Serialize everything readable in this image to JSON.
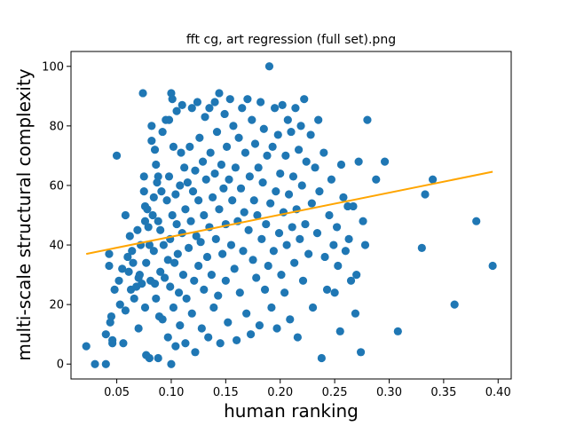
{
  "chart_data": {
    "type": "scatter",
    "title": "fft cg, art regression (full set).png",
    "xlabel": "human ranking",
    "ylabel": "multi-scale structural complexity",
    "xlim": [
      0.008,
      0.412
    ],
    "ylim": [
      -5,
      105
    ],
    "xticks": [
      0.05,
      0.1,
      0.15,
      0.2,
      0.25,
      0.3,
      0.35,
      0.4
    ],
    "xtick_labels": [
      "0.05",
      "0.10",
      "0.15",
      "0.20",
      "0.25",
      "0.30",
      "0.35",
      "0.40"
    ],
    "yticks": [
      0,
      20,
      40,
      60,
      80,
      100
    ],
    "ytick_labels": [
      "0",
      "20",
      "40",
      "60",
      "80",
      "100"
    ],
    "grid": false,
    "colors": {
      "points": "#1f77b4",
      "regression": "#ffa500"
    },
    "regression_line": {
      "x": [
        0.022,
        0.395
      ],
      "y": [
        37,
        64.6
      ]
    },
    "points": [
      [
        0.022,
        6
      ],
      [
        0.03,
        0
      ],
      [
        0.04,
        0
      ],
      [
        0.04,
        10
      ],
      [
        0.043,
        37
      ],
      [
        0.043,
        33
      ],
      [
        0.044,
        14
      ],
      [
        0.045,
        16
      ],
      [
        0.046,
        7
      ],
      [
        0.046,
        8
      ],
      [
        0.048,
        25
      ],
      [
        0.05,
        70
      ],
      [
        0.052,
        28
      ],
      [
        0.053,
        20
      ],
      [
        0.055,
        32
      ],
      [
        0.056,
        7
      ],
      [
        0.058,
        50
      ],
      [
        0.058,
        18
      ],
      [
        0.06,
        36
      ],
      [
        0.061,
        31
      ],
      [
        0.062,
        43
      ],
      [
        0.063,
        25
      ],
      [
        0.064,
        38
      ],
      [
        0.065,
        34
      ],
      [
        0.066,
        22
      ],
      [
        0.068,
        26
      ],
      [
        0.069,
        45
      ],
      [
        0.07,
        29
      ],
      [
        0.07,
        12
      ],
      [
        0.071,
        30
      ],
      [
        0.072,
        40
      ],
      [
        0.073,
        27
      ],
      [
        0.074,
        91
      ],
      [
        0.075,
        58
      ],
      [
        0.075,
        63
      ],
      [
        0.076,
        48
      ],
      [
        0.076,
        53
      ],
      [
        0.076,
        19
      ],
      [
        0.077,
        3
      ],
      [
        0.077,
        34
      ],
      [
        0.078,
        52
      ],
      [
        0.079,
        46
      ],
      [
        0.08,
        2
      ],
      [
        0.08,
        40
      ],
      [
        0.081,
        28
      ],
      [
        0.082,
        80
      ],
      [
        0.082,
        75
      ],
      [
        0.083,
        50
      ],
      [
        0.084,
        56
      ],
      [
        0.084,
        38
      ],
      [
        0.085,
        72
      ],
      [
        0.085,
        27
      ],
      [
        0.086,
        67
      ],
      [
        0.086,
        22
      ],
      [
        0.087,
        61
      ],
      [
        0.088,
        63
      ],
      [
        0.088,
        48
      ],
      [
        0.088,
        2
      ],
      [
        0.089,
        16
      ],
      [
        0.09,
        45
      ],
      [
        0.09,
        31
      ],
      [
        0.091,
        58
      ],
      [
        0.092,
        78
      ],
      [
        0.092,
        15
      ],
      [
        0.093,
        40
      ],
      [
        0.094,
        29
      ],
      [
        0.095,
        82
      ],
      [
        0.096,
        55
      ],
      [
        0.097,
        9
      ],
      [
        0.097,
        35
      ],
      [
        0.098,
        82
      ],
      [
        0.098,
        63
      ],
      [
        0.099,
        42
      ],
      [
        0.099,
        26
      ],
      [
        0.1,
        91
      ],
      [
        0.1,
        0
      ],
      [
        0.101,
        89
      ],
      [
        0.101,
        50
      ],
      [
        0.102,
        73
      ],
      [
        0.102,
        19
      ],
      [
        0.103,
        34
      ],
      [
        0.104,
        6
      ],
      [
        0.104,
        57
      ],
      [
        0.105,
        85
      ],
      [
        0.105,
        47
      ],
      [
        0.106,
        37
      ],
      [
        0.107,
        24
      ],
      [
        0.108,
        60
      ],
      [
        0.108,
        13
      ],
      [
        0.109,
        71
      ],
      [
        0.11,
        44
      ],
      [
        0.11,
        87
      ],
      [
        0.111,
        30
      ],
      [
        0.112,
        66
      ],
      [
        0.113,
        7
      ],
      [
        0.113,
        52
      ],
      [
        0.114,
        22
      ],
      [
        0.115,
        61
      ],
      [
        0.116,
        39
      ],
      [
        0.117,
        73
      ],
      [
        0.118,
        48
      ],
      [
        0.119,
        86
      ],
      [
        0.119,
        17
      ],
      [
        0.12,
        58
      ],
      [
        0.121,
        28
      ],
      [
        0.122,
        65
      ],
      [
        0.122,
        4
      ],
      [
        0.123,
        43
      ],
      [
        0.124,
        88
      ],
      [
        0.125,
        55
      ],
      [
        0.125,
        33
      ],
      [
        0.126,
        76
      ],
      [
        0.127,
        41
      ],
      [
        0.128,
        12
      ],
      [
        0.129,
        68
      ],
      [
        0.13,
        50
      ],
      [
        0.13,
        25
      ],
      [
        0.131,
        83
      ],
      [
        0.132,
        62
      ],
      [
        0.133,
        36
      ],
      [
        0.134,
        9
      ],
      [
        0.135,
        86
      ],
      [
        0.135,
        46
      ],
      [
        0.136,
        71
      ],
      [
        0.137,
        30
      ],
      [
        0.138,
        56
      ],
      [
        0.139,
        19
      ],
      [
        0.14,
        88
      ],
      [
        0.14,
        64
      ],
      [
        0.141,
        42
      ],
      [
        0.142,
        78
      ],
      [
        0.143,
        23
      ],
      [
        0.144,
        91
      ],
      [
        0.144,
        52
      ],
      [
        0.145,
        7
      ],
      [
        0.146,
        67
      ],
      [
        0.147,
        37
      ],
      [
        0.148,
        59
      ],
      [
        0.149,
        84
      ],
      [
        0.15,
        28
      ],
      [
        0.15,
        47
      ],
      [
        0.151,
        73
      ],
      [
        0.152,
        14
      ],
      [
        0.153,
        62
      ],
      [
        0.154,
        89
      ],
      [
        0.155,
        40
      ],
      [
        0.156,
        55
      ],
      [
        0.157,
        80
      ],
      [
        0.158,
        32
      ],
      [
        0.159,
        66
      ],
      [
        0.16,
        8
      ],
      [
        0.161,
        48
      ],
      [
        0.162,
        76
      ],
      [
        0.163,
        24
      ],
      [
        0.164,
        59
      ],
      [
        0.165,
        86
      ],
      [
        0.166,
        38
      ],
      [
        0.167,
        51
      ],
      [
        0.168,
        71
      ],
      [
        0.169,
        17
      ],
      [
        0.17,
        89
      ],
      [
        0.171,
        45
      ],
      [
        0.172,
        63
      ],
      [
        0.173,
        10
      ],
      [
        0.174,
        82
      ],
      [
        0.175,
        35
      ],
      [
        0.176,
        55
      ],
      [
        0.177,
        74
      ],
      [
        0.178,
        29
      ],
      [
        0.179,
        50
      ],
      [
        0.18,
        66
      ],
      [
        0.181,
        13
      ],
      [
        0.182,
        88
      ],
      [
        0.183,
        42
      ],
      [
        0.184,
        61
      ],
      [
        0.185,
        79
      ],
      [
        0.186,
        25
      ],
      [
        0.187,
        47
      ],
      [
        0.188,
        70
      ],
      [
        0.189,
        33
      ],
      [
        0.19,
        100
      ],
      [
        0.191,
        54
      ],
      [
        0.192,
        19
      ],
      [
        0.193,
        73
      ],
      [
        0.194,
        38
      ],
      [
        0.195,
        86
      ],
      [
        0.196,
        58
      ],
      [
        0.197,
        12
      ],
      [
        0.198,
        77
      ],
      [
        0.199,
        44
      ],
      [
        0.2,
        64
      ],
      [
        0.201,
        30
      ],
      [
        0.202,
        87
      ],
      [
        0.203,
        51
      ],
      [
        0.204,
        24
      ],
      [
        0.205,
        70
      ],
      [
        0.206,
        40
      ],
      [
        0.207,
        82
      ],
      [
        0.208,
        57
      ],
      [
        0.209,
        15
      ],
      [
        0.21,
        78
      ],
      [
        0.211,
        46
      ],
      [
        0.212,
        63
      ],
      [
        0.213,
        34
      ],
      [
        0.214,
        86
      ],
      [
        0.215,
        52
      ],
      [
        0.216,
        9
      ],
      [
        0.217,
        72
      ],
      [
        0.218,
        42
      ],
      [
        0.219,
        80
      ],
      [
        0.22,
        60
      ],
      [
        0.221,
        28
      ],
      [
        0.222,
        89
      ],
      [
        0.223,
        47
      ],
      [
        0.224,
        68
      ],
      [
        0.226,
        37
      ],
      [
        0.228,
        77
      ],
      [
        0.229,
        54
      ],
      [
        0.23,
        19
      ],
      [
        0.232,
        66
      ],
      [
        0.234,
        44
      ],
      [
        0.235,
        82
      ],
      [
        0.236,
        58
      ],
      [
        0.238,
        2
      ],
      [
        0.24,
        71
      ],
      [
        0.241,
        36
      ],
      [
        0.243,
        25
      ],
      [
        0.245,
        50
      ],
      [
        0.247,
        62
      ],
      [
        0.249,
        40
      ],
      [
        0.25,
        24
      ],
      [
        0.252,
        46
      ],
      [
        0.253,
        33
      ],
      [
        0.255,
        11
      ],
      [
        0.256,
        67
      ],
      [
        0.258,
        56
      ],
      [
        0.26,
        38
      ],
      [
        0.262,
        53
      ],
      [
        0.263,
        42
      ],
      [
        0.265,
        28
      ],
      [
        0.267,
        53
      ],
      [
        0.269,
        17
      ],
      [
        0.27,
        30
      ],
      [
        0.272,
        68
      ],
      [
        0.274,
        4
      ],
      [
        0.276,
        48
      ],
      [
        0.278,
        40
      ],
      [
        0.28,
        82
      ],
      [
        0.288,
        62
      ],
      [
        0.296,
        68
      ],
      [
        0.308,
        11
      ],
      [
        0.33,
        39
      ],
      [
        0.333,
        57
      ],
      [
        0.34,
        62
      ],
      [
        0.36,
        20
      ],
      [
        0.38,
        48
      ],
      [
        0.395,
        33
      ]
    ]
  }
}
